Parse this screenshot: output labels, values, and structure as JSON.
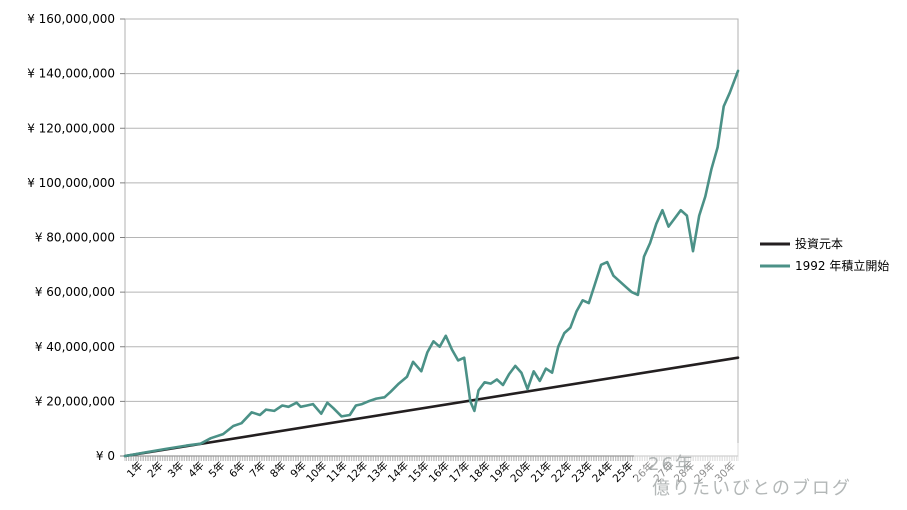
{
  "chart_data": {
    "type": "line",
    "title": "",
    "xlabel": "",
    "ylabel": "",
    "ylim": [
      0,
      160000000
    ],
    "y_ticks": [
      {
        "value": 0,
        "label": "¥ 0"
      },
      {
        "value": 20000000,
        "label": "¥ 20,000,000"
      },
      {
        "value": 40000000,
        "label": "¥ 40,000,000"
      },
      {
        "value": 60000000,
        "label": "¥ 60,000,000"
      },
      {
        "value": 80000000,
        "label": "¥ 80,000,000"
      },
      {
        "value": 100000000,
        "label": "¥ 100,000,000"
      },
      {
        "value": 120000000,
        "label": "¥ 120,000,000"
      },
      {
        "value": 140000000,
        "label": "¥ 140,000,000"
      },
      {
        "value": 160000000,
        "label": "¥ 160,000,000"
      }
    ],
    "xlim_years": [
      0,
      30
    ],
    "x_tick_labels": [
      "1年",
      "2年",
      "3年",
      "4年",
      "5年",
      "6年",
      "7年",
      "8年",
      "9年",
      "10年",
      "11年",
      "12年",
      "13年",
      "14年",
      "15年",
      "16年",
      "17年",
      "18年",
      "19年",
      "20年",
      "21年",
      "22年",
      "23年",
      "24年",
      "25年",
      "26年",
      "27年",
      "28年",
      "29年",
      "30年"
    ],
    "grid": "horizontal",
    "legend_position": "right",
    "series": [
      {
        "name": "投資元本",
        "color": "#231f20",
        "x": [
          0,
          30
        ],
        "values": [
          0,
          36000000
        ]
      },
      {
        "name": "1992 年積立開始",
        "color": "#4b9187",
        "x": [
          0,
          1,
          2,
          3,
          3.7,
          4.2,
          4.8,
          5.3,
          5.7,
          6.2,
          6.6,
          6.9,
          7.3,
          7.7,
          8.0,
          8.4,
          8.6,
          8.9,
          9.2,
          9.6,
          9.9,
          10.2,
          10.6,
          11.0,
          11.3,
          11.6,
          11.9,
          12.3,
          12.7,
          13.0,
          13.4,
          13.8,
          14.1,
          14.5,
          14.8,
          15.1,
          15.4,
          15.7,
          16.0,
          16.3,
          16.6,
          16.9,
          17.1,
          17.3,
          17.6,
          17.9,
          18.2,
          18.5,
          18.8,
          19.1,
          19.4,
          19.7,
          20.0,
          20.3,
          20.6,
          20.9,
          21.2,
          21.5,
          21.8,
          22.1,
          22.4,
          22.7,
          23.0,
          23.3,
          23.6,
          23.9,
          24.2,
          24.5,
          24.8,
          25.1,
          25.4,
          25.7,
          26.0,
          26.3,
          26.6,
          26.9,
          27.2,
          27.5,
          27.8,
          28.1,
          28.4,
          28.7,
          29.0,
          29.3,
          29.6,
          30.0
        ],
        "values": [
          0,
          1300000,
          2600000,
          3800000,
          4500000,
          6500000,
          8000000,
          11000000,
          12000000,
          16000000,
          15000000,
          17000000,
          16500000,
          18500000,
          18000000,
          19500000,
          18000000,
          18500000,
          19000000,
          15500000,
          19500000,
          17500000,
          14500000,
          15000000,
          18500000,
          19000000,
          20000000,
          21000000,
          21500000,
          23500000,
          26500000,
          29000000,
          34500000,
          31000000,
          38000000,
          42000000,
          40000000,
          44000000,
          39000000,
          35000000,
          36000000,
          20000000,
          16500000,
          24000000,
          27000000,
          26500000,
          28000000,
          26000000,
          30000000,
          33000000,
          30500000,
          24500000,
          31000000,
          27500000,
          32000000,
          30500000,
          40000000,
          45000000,
          47000000,
          53000000,
          57000000,
          56000000,
          63000000,
          70000000,
          71000000,
          66000000,
          64000000,
          62000000,
          60000000,
          59000000,
          73000000,
          78000000,
          85000000,
          90000000,
          84000000,
          87000000,
          90000000,
          88000000,
          75000000,
          88000000,
          95000000,
          105000000,
          113000000,
          128000000,
          133000000,
          141000000
        ]
      }
    ]
  },
  "watermark": {
    "text": "億りたいびとのブログ",
    "badge": "26年"
  }
}
